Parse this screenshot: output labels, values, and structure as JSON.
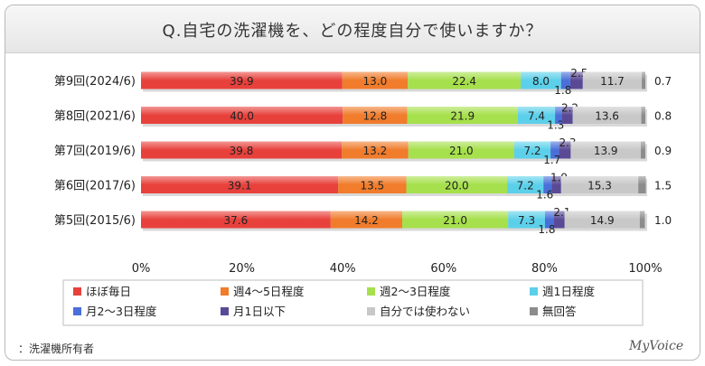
{
  "chart_data": {
    "type": "bar",
    "orientation": "horizontal",
    "stacked": "percent",
    "title": "Q.自宅の洗濯機を、どの程度自分で使いますか？",
    "categories": [
      "第9回(2024/6)",
      "第8回(2021/6)",
      "第7回(2019/6)",
      "第6回(2017/6)",
      "第5回(2015/6)"
    ],
    "series": [
      {
        "name": "ほぼ毎日",
        "color": "#e8413c",
        "values": [
          39.9,
          40.0,
          39.8,
          39.1,
          37.6
        ]
      },
      {
        "name": "週4～5日程度",
        "color": "#f07c2c",
        "values": [
          13.0,
          12.8,
          13.2,
          13.5,
          14.2
        ]
      },
      {
        "name": "週2～3日程度",
        "color": "#a6e04c",
        "values": [
          22.4,
          21.9,
          21.0,
          20.0,
          21.0
        ]
      },
      {
        "name": "週1日程度",
        "color": "#5cd0ea",
        "values": [
          8.0,
          7.4,
          7.2,
          7.2,
          7.3
        ]
      },
      {
        "name": "月2～3日程度",
        "color": "#4a6fd8",
        "values": [
          1.8,
          1.3,
          1.7,
          1.6,
          1.8
        ]
      },
      {
        "name": "月1日以下",
        "color": "#5a4a96",
        "values": [
          2.5,
          2.2,
          2.3,
          1.9,
          2.1
        ]
      },
      {
        "name": "自分では使わない",
        "color": "#c8c8c8",
        "values": [
          11.7,
          13.6,
          13.9,
          15.3,
          14.9
        ]
      },
      {
        "name": "無回答",
        "color": "#8c8c8c",
        "values": [
          0.7,
          0.8,
          0.9,
          1.5,
          1.0
        ]
      }
    ],
    "value_labels": [
      [
        "39.9",
        "13.0",
        "22.4",
        "8.0",
        "1.8",
        "2.5",
        "11.7",
        "0.7"
      ],
      [
        "40.0",
        "12.8",
        "21.9",
        "7.4",
        "1.3",
        "2.2",
        "13.6",
        "0.8"
      ],
      [
        "39.8",
        "13.2",
        "21.0",
        "7.2",
        "1.7",
        "2.3",
        "13.9",
        "0.9"
      ],
      [
        "39.1",
        "13.5",
        "20.0",
        "7.2",
        "1.6",
        "1.9",
        "15.3",
        "1.5"
      ],
      [
        "37.6",
        "14.2",
        "21.0",
        "7.3",
        "1.8",
        "2.1",
        "14.9",
        "1.0"
      ]
    ],
    "xlim": [
      0,
      100
    ],
    "xticks": [
      "0%",
      "20%",
      "40%",
      "60%",
      "80%",
      "100%"
    ],
    "legend_position": "bottom",
    "grid": false
  },
  "footnote": "：洗濯機所有者",
  "brand": "MyVoice"
}
